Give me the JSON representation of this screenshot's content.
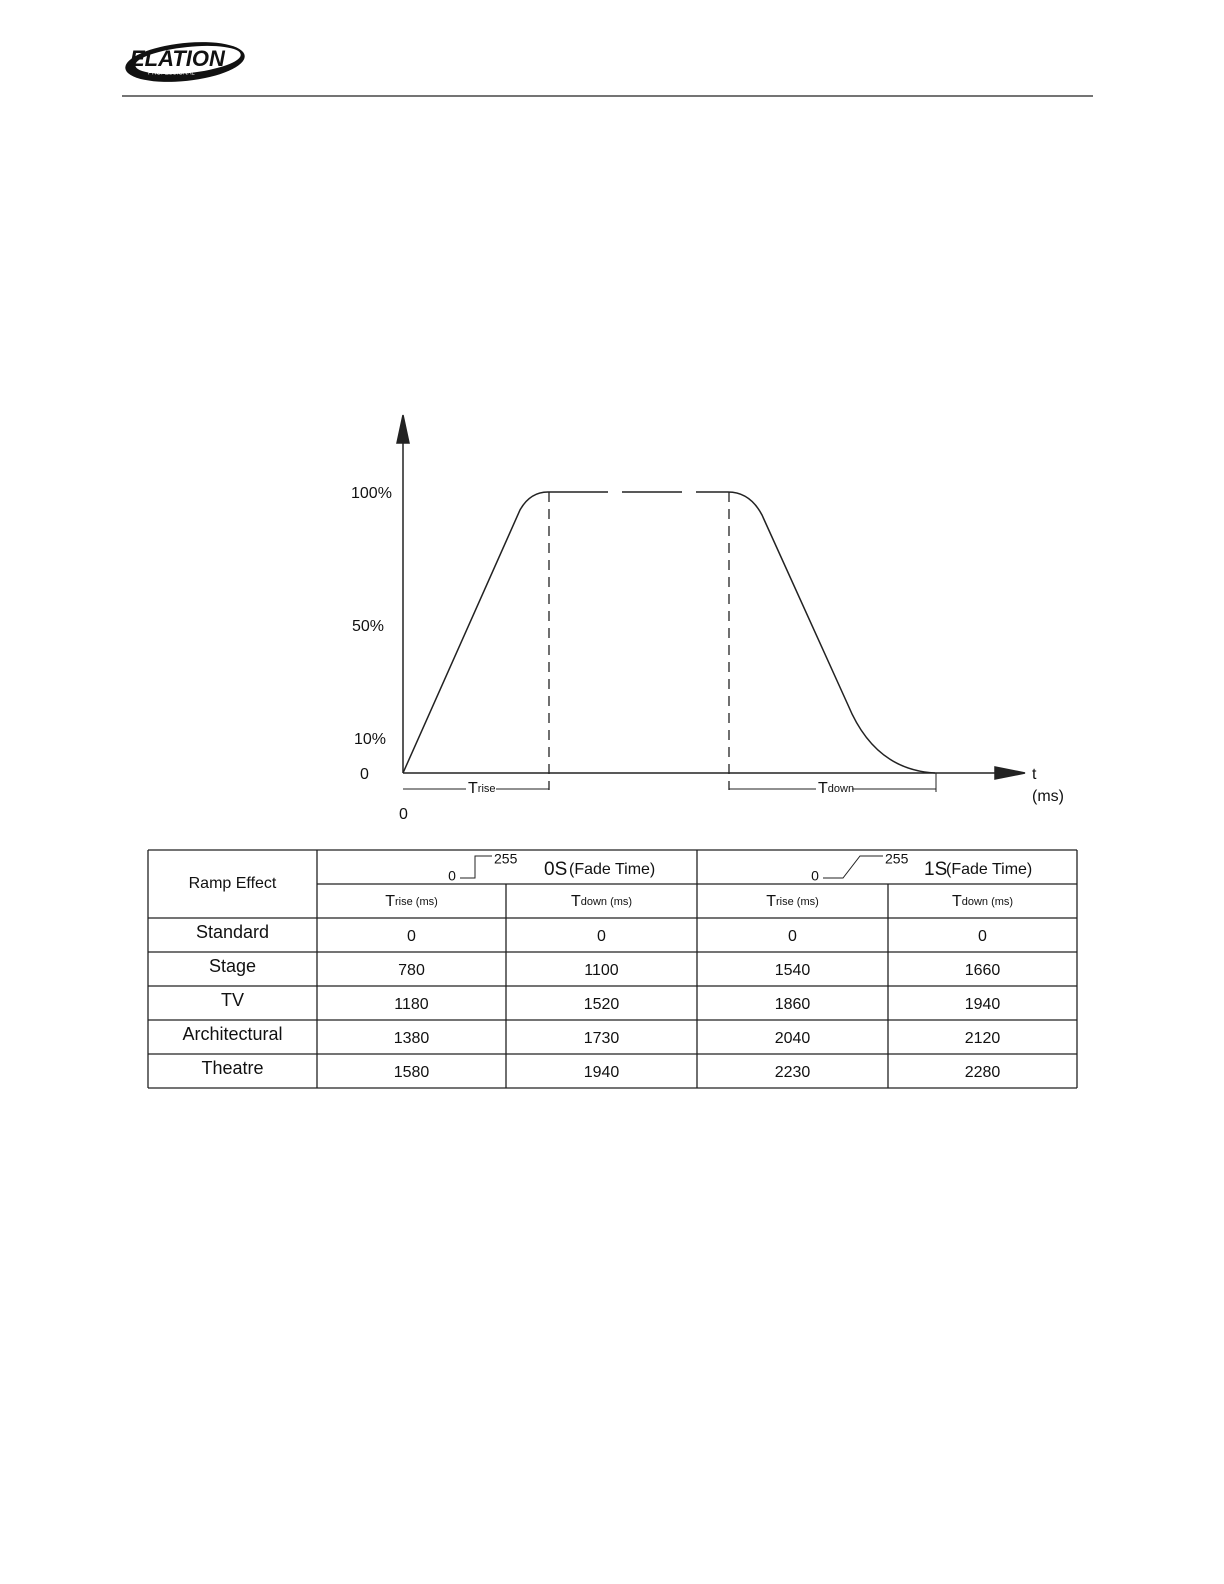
{
  "header": {
    "logo": "ELATION",
    "logo_sub": "PROFESSIONAL"
  },
  "diagram": {
    "y_labels": [
      "100%",
      "50%",
      "10%",
      "0"
    ],
    "x_origin": "0",
    "t_label": "t",
    "t_unit": "(ms)",
    "rise": {
      "main": "T",
      "sub": "rise"
    },
    "down": {
      "main": "T",
      "sub": "down"
    }
  },
  "table": {
    "corner": "Ramp Effect",
    "groups": [
      {
        "low": "0",
        "high": "255",
        "label": "0S",
        "sublabel": "(Fade Time)"
      },
      {
        "low": "0",
        "high": "255",
        "label": "1S",
        "sublabel": "(Fade Time)"
      }
    ],
    "subheaders": [
      {
        "main": "T",
        "sub": "rise (ms)"
      },
      {
        "main": "T",
        "sub": "down (ms)"
      },
      {
        "main": "T",
        "sub": "rise (ms)"
      },
      {
        "main": "T",
        "sub": "down (ms)"
      }
    ],
    "rows": [
      [
        "Standard",
        0,
        0,
        0,
        0
      ],
      [
        "Stage",
        780,
        1100,
        1540,
        1660
      ],
      [
        "TV",
        1180,
        1520,
        1860,
        1940
      ],
      [
        "Architectural",
        1380,
        1730,
        2040,
        2120
      ],
      [
        "Theatre",
        1580,
        1940,
        2230,
        2280
      ]
    ]
  }
}
